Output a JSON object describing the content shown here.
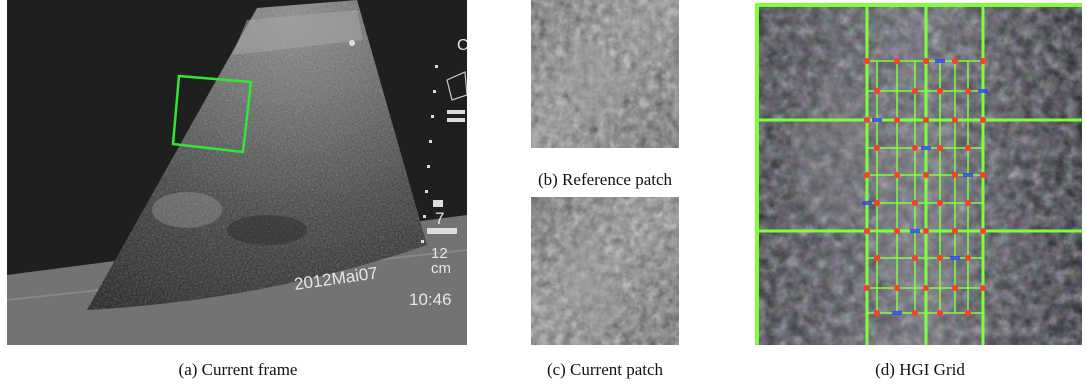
{
  "figures": [
    {
      "id": "a",
      "caption": "(a) Current frame",
      "overlay": {
        "date": "2012Mai07",
        "time": "10:46",
        "gain": "7",
        "depth_value": "12",
        "depth_unit": "cm"
      },
      "roi_color": "#33e633"
    },
    {
      "id": "b",
      "caption": "(b) Reference patch"
    },
    {
      "id": "c",
      "caption": "(c) Current patch"
    },
    {
      "id": "d",
      "caption": "(d) HGI Grid",
      "grid_colors": {
        "line": "#7fff3c",
        "node": "#ff3b2f",
        "accent": "#3040ff"
      }
    }
  ]
}
